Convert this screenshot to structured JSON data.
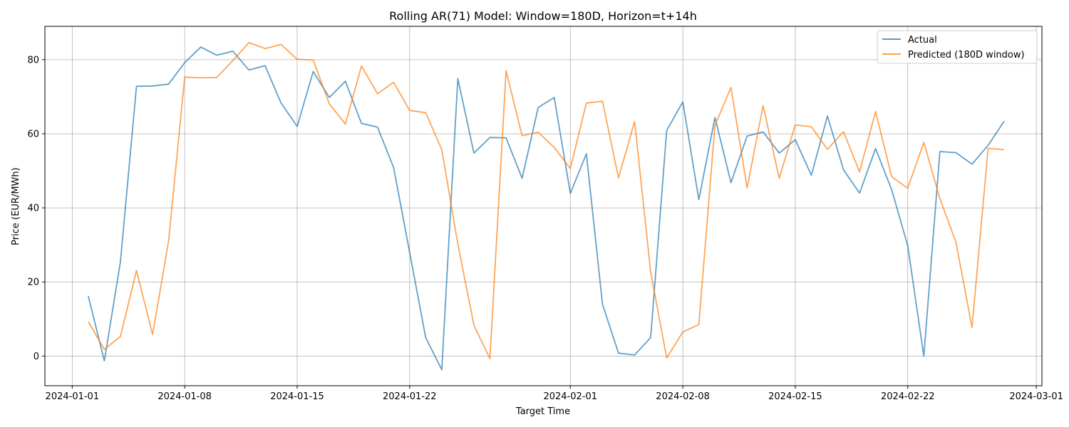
{
  "chart_data": {
    "type": "line",
    "title": "Rolling AR(71) Model: Window=180D, Horizon=t+14h",
    "xlabel": "Target Time",
    "ylabel": "Price (EUR/MWh)",
    "xlim": [
      "2024-01-01",
      "2024-03-01"
    ],
    "ylim": [
      -8,
      89
    ],
    "xticks": [
      "2024-01-01",
      "2024-01-08",
      "2024-01-15",
      "2024-01-22",
      "2024-02-01",
      "2024-02-08",
      "2024-02-15",
      "2024-02-22",
      "2024-03-01"
    ],
    "yticks": [
      0,
      20,
      40,
      60,
      80
    ],
    "grid": true,
    "legend_position": "top-right",
    "x": [
      "2024-01-02",
      "2024-01-03",
      "2024-01-04",
      "2024-01-05",
      "2024-01-06",
      "2024-01-07",
      "2024-01-08",
      "2024-01-09",
      "2024-01-10",
      "2024-01-11",
      "2024-01-12",
      "2024-01-13",
      "2024-01-14",
      "2024-01-15",
      "2024-01-16",
      "2024-01-17",
      "2024-01-18",
      "2024-01-19",
      "2024-01-20",
      "2024-01-21",
      "2024-01-22",
      "2024-01-23",
      "2024-01-24",
      "2024-01-25",
      "2024-01-26",
      "2024-01-27",
      "2024-01-28",
      "2024-01-29",
      "2024-01-30",
      "2024-01-31",
      "2024-02-01",
      "2024-02-02",
      "2024-02-03",
      "2024-02-04",
      "2024-02-05",
      "2024-02-06",
      "2024-02-07",
      "2024-02-08",
      "2024-02-09",
      "2024-02-10",
      "2024-02-11",
      "2024-02-12",
      "2024-02-13",
      "2024-02-14",
      "2024-02-15",
      "2024-02-16",
      "2024-02-17",
      "2024-02-18",
      "2024-02-19",
      "2024-02-20",
      "2024-02-21",
      "2024-02-22",
      "2024-02-23",
      "2024-02-24",
      "2024-02-25",
      "2024-02-26",
      "2024-02-27",
      "2024-02-28"
    ],
    "series": [
      {
        "name": "Actual",
        "color": "#1f77b4",
        "values": [
          16.2,
          -1.3,
          25.5,
          72.8,
          72.9,
          73.4,
          79.2,
          83.4,
          81.2,
          82.3,
          77.2,
          78.4,
          68.3,
          62.0,
          76.8,
          69.8,
          74.2,
          62.8,
          61.8,
          50.9,
          28.0,
          5.0,
          -3.7,
          74.9,
          54.8,
          59.0,
          58.9,
          48.0,
          67.1,
          69.8,
          43.9,
          54.6,
          14.0,
          0.8,
          0.3,
          5.0,
          60.9,
          68.6,
          42.2,
          64.4,
          46.8,
          59.4,
          60.5,
          54.8,
          58.4,
          48.8,
          64.8,
          50.3,
          44.0,
          56.0,
          44.9,
          29.8,
          0.0,
          55.2,
          54.9,
          51.8,
          56.9,
          63.4
        ]
      },
      {
        "name": "Predicted (180D window)",
        "color": "#ff7f0e",
        "values": [
          9.3,
          1.8,
          5.3,
          23.1,
          5.8,
          31.1,
          75.3,
          75.1,
          75.2,
          79.8,
          84.6,
          83.0,
          84.1,
          80.1,
          79.9,
          68.1,
          62.6,
          78.3,
          70.8,
          73.9,
          66.3,
          65.7,
          55.7,
          30.3,
          8.3,
          -0.7,
          77.0,
          59.5,
          60.4,
          56.3,
          50.6,
          68.3,
          68.8,
          48.1,
          63.3,
          22.7,
          -0.5,
          6.5,
          8.5,
          62.3,
          72.5,
          45.4,
          67.6,
          48.0,
          62.4,
          61.9,
          55.8,
          60.6,
          49.7,
          66.0,
          48.4,
          45.3,
          57.7,
          42.5,
          30.7,
          7.7,
          56.1,
          55.7
        ]
      }
    ]
  }
}
